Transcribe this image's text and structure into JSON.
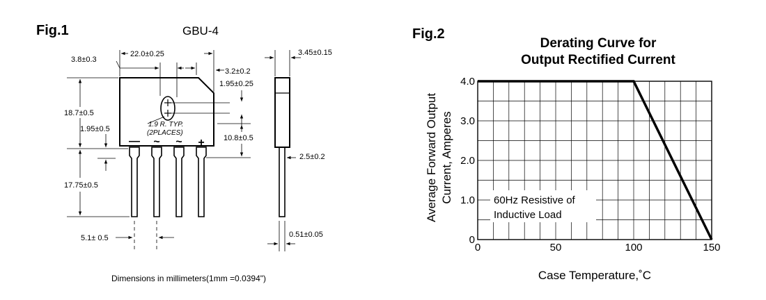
{
  "fig1": {
    "title": "Fig.1",
    "package": "GBU-4",
    "dims": {
      "d_3_8": "3.8±0.3",
      "d_22_0": "22.0±0.25",
      "d_3_2": "3.2±0.2",
      "d_1_95_top": "1.95±0.25",
      "d_18_7": "18.7±0.5",
      "d_1_95_left": "1.95±0.5",
      "d_10_8": "10.8±0.5",
      "d_17_75": "17.75±0.5",
      "d_5_1": "5.1± 0.5",
      "d_3_45": "3.45±0.15",
      "d_2_5": "2.5±0.2",
      "d_0_51": "0.51±0.05",
      "radius_1": "1.9 R. TYP.",
      "radius_2": "(2PLACES)"
    },
    "pins": [
      "—",
      "~",
      "~",
      "+"
    ],
    "caption": "Dimensions in millimeters(1mm =0.0394\")"
  },
  "fig2": {
    "title": "Fig.2",
    "load_note_1": "60Hz Resistive of",
    "load_note_2": "Inductive Load"
  },
  "chart_data": {
    "type": "line",
    "title": "Derating Curve for Output Rectified Current",
    "title_line1": "Derating Curve for",
    "title_line2": "Output Rectified Current",
    "xlabel": "Case Temperature,˚C",
    "ylabel_line1": "Average Forward Output",
    "ylabel_line2": "Current, Amperes",
    "xlim": [
      0,
      150
    ],
    "ylim": [
      0,
      4.0
    ],
    "x_ticks": [
      "0",
      "50",
      "100",
      "150"
    ],
    "y_ticks": [
      "0",
      "1.0",
      "2.0",
      "3.0",
      "4.0"
    ],
    "grid": true,
    "x": [
      0,
      100,
      150
    ],
    "y": [
      4.0,
      4.0,
      0
    ],
    "line_color": "#000000"
  }
}
